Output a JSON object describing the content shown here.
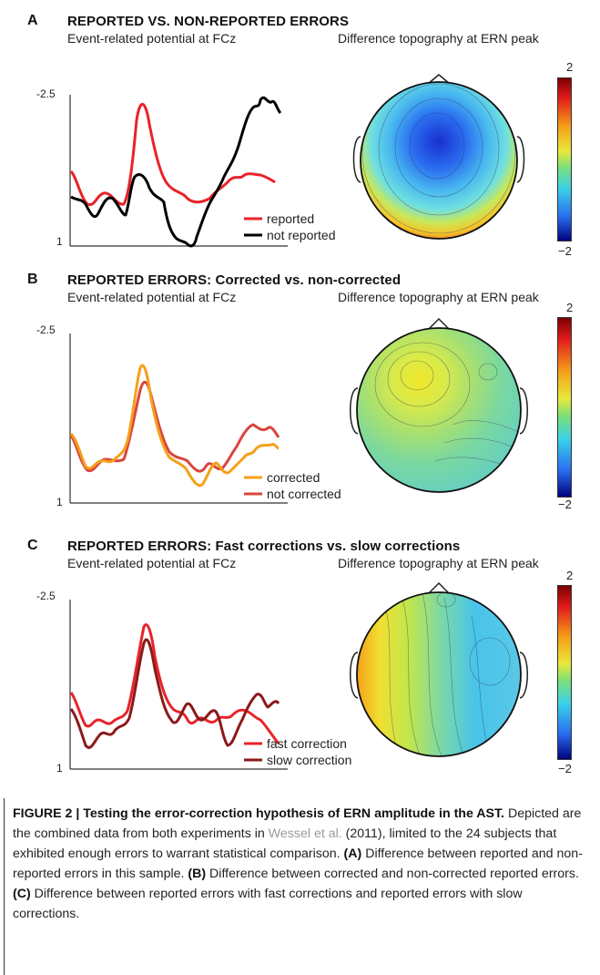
{
  "panels": [
    {
      "label": "A",
      "title": "REPORTED VS. NON-REPORTED ERRORS",
      "erp_subtitle": "Event-related potential at FCz",
      "topo_subtitle": "Difference topography at ERN peak",
      "y_top": "-2.5",
      "y_bottom": "1",
      "legend": [
        {
          "label": "reported",
          "color": "#e8232a"
        },
        {
          "label": "not reported",
          "color": "#000000"
        }
      ],
      "cbar_max": "2",
      "cbar_min": "−2"
    },
    {
      "label": "B",
      "title": "REPORTED ERRORS: Corrected vs. non-corrected",
      "erp_subtitle": "Event-related potential at FCz",
      "topo_subtitle": "Difference topography at ERN peak",
      "y_top": "-2.5",
      "y_bottom": "1",
      "legend": [
        {
          "label": "corrected",
          "color": "#f5a01a"
        },
        {
          "label": "not corrected",
          "color": "#d9453e"
        }
      ],
      "cbar_max": "2",
      "cbar_min": "−2"
    },
    {
      "label": "C",
      "title": "REPORTED ERRORS: Fast corrections vs. slow corrections",
      "erp_subtitle": "Event-related potential at FCz",
      "topo_subtitle": "Difference topography at ERN peak",
      "y_top": "-2.5",
      "y_bottom": "1",
      "legend": [
        {
          "label": "fast correction",
          "color": "#e8232a"
        },
        {
          "label": "slow correction",
          "color": "#8b1a1a"
        }
      ],
      "cbar_max": "2",
      "cbar_min": "−2"
    }
  ],
  "caption": {
    "figure_label": "FIGURE 2 | Testing the error-correction hypothesis of ERN amplitude in the AST.",
    "text_1": " Depicted are the combined data from both experiments in ",
    "ref": "Wessel et al.",
    "text_2": " (2011), limited to the 24 subjects that exhibited enough errors to warrant statistical comparison. ",
    "a_label": "(A)",
    "a_text": " Difference between reported and non-reported errors in this sample. ",
    "b_label": "(B)",
    "b_text": " Difference between corrected and non-corrected reported errors. ",
    "c_label": "(C)",
    "c_text": " Difference between reported errors with fast corrections and reported errors with slow corrections."
  }
}
